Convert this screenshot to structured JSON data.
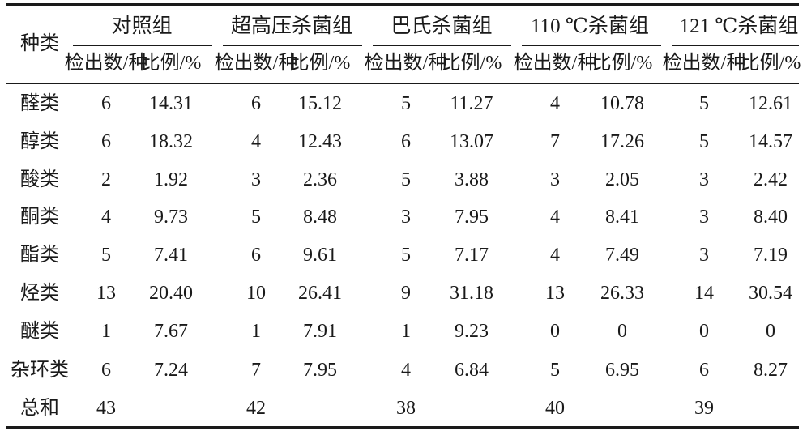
{
  "table": {
    "corner_header": "种类",
    "groups": [
      "对照组",
      "超高压杀菌组",
      "巴氏杀菌组",
      "110 ℃杀菌组",
      "121 ℃杀菌组"
    ],
    "sub_headers": [
      "检出数/种",
      "比例/%"
    ],
    "rows": [
      {
        "label": "醛类",
        "values": [
          "6",
          "14.31",
          "6",
          "15.12",
          "5",
          "11.27",
          "4",
          "10.78",
          "5",
          "12.61"
        ]
      },
      {
        "label": "醇类",
        "values": [
          "6",
          "18.32",
          "4",
          "12.43",
          "6",
          "13.07",
          "7",
          "17.26",
          "5",
          "14.57"
        ]
      },
      {
        "label": "酸类",
        "values": [
          "2",
          "1.92",
          "3",
          "2.36",
          "5",
          "3.88",
          "3",
          "2.05",
          "3",
          "2.42"
        ]
      },
      {
        "label": "酮类",
        "values": [
          "4",
          "9.73",
          "5",
          "8.48",
          "3",
          "7.95",
          "4",
          "8.41",
          "3",
          "8.40"
        ]
      },
      {
        "label": "酯类",
        "values": [
          "5",
          "7.41",
          "6",
          "9.61",
          "5",
          "7.17",
          "4",
          "7.49",
          "3",
          "7.19"
        ]
      },
      {
        "label": "烃类",
        "values": [
          "13",
          "20.40",
          "10",
          "26.41",
          "9",
          "31.18",
          "13",
          "26.33",
          "14",
          "30.54"
        ]
      },
      {
        "label": "醚类",
        "values": [
          "1",
          "7.67",
          "1",
          "7.91",
          "1",
          "9.23",
          "0",
          "0",
          "0",
          "0"
        ]
      },
      {
        "label": "杂环类",
        "values": [
          "6",
          "7.24",
          "7",
          "7.95",
          "4",
          "6.84",
          "5",
          "6.95",
          "6",
          "8.27"
        ]
      },
      {
        "label": "总和",
        "values": [
          "43",
          "",
          "42",
          "",
          "38",
          "",
          "40",
          "",
          "39",
          ""
        ]
      }
    ]
  }
}
